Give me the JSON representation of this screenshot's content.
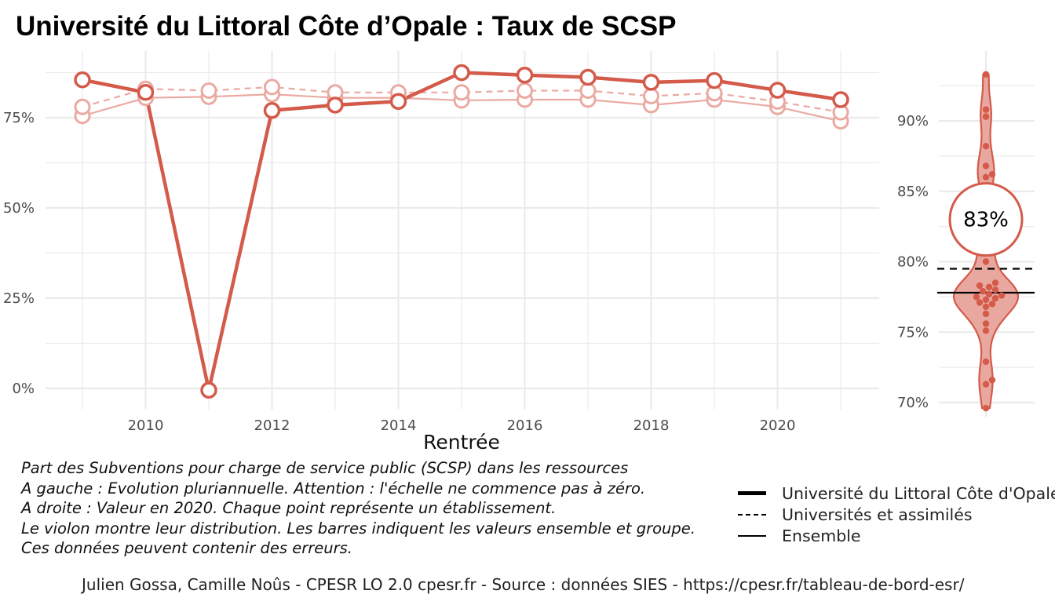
{
  "title": "Université du Littoral Côte d’Opale  :  Taux de SCSP",
  "notes": [
    "Part des Subventions pour charge de service public (SCSP) dans les ressources",
    "A gauche : Evolution pluriannuelle. Attention : l'échelle ne commence pas à zéro.",
    "A droite : Valeur en 2020. Chaque point représente un établissement.",
    "Le violon montre leur distribution. Les barres indiquent les valeurs ensemble et groupe.",
    "Ces données peuvent contenir des erreurs."
  ],
  "legend": [
    {
      "label": "Université du Littoral Côte d'Opale",
      "style": "solid-thick"
    },
    {
      "label": "Universités et assimilés",
      "style": "dashed"
    },
    {
      "label": "Ensemble",
      "style": "solid"
    }
  ],
  "caption": "Julien Gossa, Camille Noûs - CPESR LO 2.0 cpesr.fr - Source : données SIES - https://cpesr.fr/tableau-de-bord-esr/",
  "colors": {
    "main": "#d45a4a",
    "light": "#eaaaa2",
    "violin_fill": "#e9a89f",
    "grid": "#ebebeb",
    "ref_line": "#000000"
  },
  "chart_data": [
    {
      "type": "line",
      "xlabel": "Rentrée",
      "ylabel": "",
      "x": [
        2009,
        2010,
        2011,
        2012,
        2013,
        2014,
        2015,
        2016,
        2017,
        2018,
        2019,
        2020,
        2021
      ],
      "xticks": [
        2010,
        2012,
        2014,
        2016,
        2018,
        2020
      ],
      "ylim": [
        -3,
        89
      ],
      "yticks": [
        0,
        25,
        50,
        75
      ],
      "ytick_labels": [
        "0%",
        "25%",
        "50%",
        "75%"
      ],
      "grid": true,
      "series": [
        {
          "name": "Université du Littoral Côte d'Opale",
          "style": "solid-thick",
          "values": [
            85.5,
            82,
            -0.5,
            77,
            78.5,
            79.5,
            87.5,
            86.8,
            86.2,
            84.8,
            85.3,
            82.6,
            80
          ]
        },
        {
          "name": "Universités et assimilés",
          "style": "dashed",
          "values": [
            78,
            83,
            82.5,
            83.5,
            82,
            82,
            82,
            82.5,
            82.5,
            81,
            81.8,
            79.5,
            76.5
          ]
        },
        {
          "name": "Ensemble",
          "style": "solid",
          "values": [
            75.5,
            80.5,
            80.8,
            81.5,
            80.5,
            80.5,
            79.8,
            80,
            80,
            78.5,
            80,
            78,
            74
          ]
        }
      ]
    },
    {
      "type": "scatter",
      "subtype": "violin",
      "year": 2020,
      "highlight_label": "83%",
      "highlight_value": 83,
      "ylim": [
        69.3,
        94.3
      ],
      "yticks": [
        70,
        75,
        80,
        85,
        90
      ],
      "ytick_labels": [
        "70%",
        "75%",
        "80%",
        "85%",
        "90%"
      ],
      "reference_lines": [
        {
          "name": "Universités et assimilés",
          "value": 79.5,
          "style": "dashed"
        },
        {
          "name": "Ensemble",
          "value": 77.8,
          "style": "solid"
        }
      ],
      "values": [
        93.3,
        90.8,
        90.3,
        88.2,
        86.8,
        86.2,
        86.0,
        84.0,
        82.3,
        81.5,
        80.8,
        80.0,
        78.5,
        78.3,
        78.2,
        78.0,
        77.9,
        77.7,
        77.6,
        77.5,
        77.4,
        77.3,
        77.1,
        77.0,
        76.8,
        76.3,
        75.6,
        75.1,
        72.9,
        71.6,
        71.3,
        69.6
      ],
      "grid": true
    }
  ]
}
